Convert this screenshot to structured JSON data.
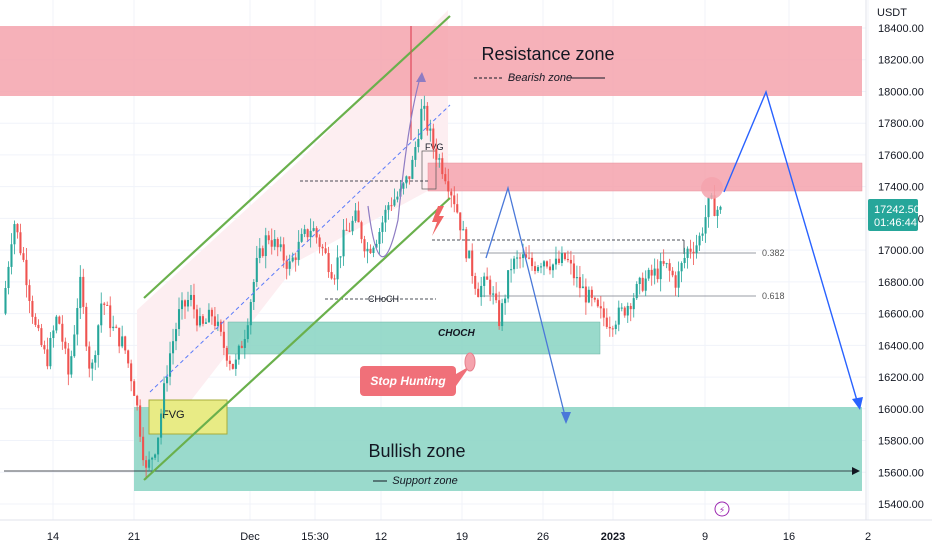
{
  "chart_data": {
    "type": "candlestick",
    "title": "",
    "ylabel": "USDT",
    "xlabel": "",
    "ylim": [
      15300,
      18450
    ],
    "yticks": [
      15400,
      15600,
      15800,
      16000,
      16200,
      16400,
      16600,
      16800,
      17000,
      17200,
      17400,
      17600,
      17800,
      18000,
      18200,
      18400
    ],
    "ytick_labels": [
      "15400.00",
      "15600.00",
      "15800.00",
      "16000.00",
      "16200.00",
      "16400.00",
      "16600.00",
      "16800.00",
      "17000.00",
      "17200.00",
      "17400.00",
      "17600.00",
      "17800.00",
      "18000.00",
      "18200.00",
      "18400.00"
    ],
    "xaxis_labels": [
      "14",
      "21",
      "Dec",
      "15:30",
      "12",
      "19",
      "26",
      "2023",
      "9",
      "16",
      "2"
    ],
    "last_price": "17242.50",
    "countdown": "01:46:44",
    "grid": true,
    "ohlc_trend": [
      [
        0,
        16600
      ],
      [
        2,
        17200
      ],
      [
        4,
        16900
      ],
      [
        6,
        16500
      ],
      [
        8,
        16300
      ],
      [
        10,
        16600
      ],
      [
        12,
        16200
      ],
      [
        14,
        16800
      ],
      [
        16,
        16200
      ],
      [
        18,
        16700
      ],
      [
        20,
        16500
      ],
      [
        22,
        16400
      ],
      [
        24,
        16100
      ],
      [
        26,
        15600
      ],
      [
        28,
        15800
      ],
      [
        30,
        16300
      ],
      [
        32,
        16600
      ],
      [
        34,
        16700
      ],
      [
        36,
        16500
      ],
      [
        38,
        16600
      ],
      [
        40,
        16400
      ],
      [
        42,
        16250
      ],
      [
        44,
        16500
      ],
      [
        46,
        16900
      ],
      [
        48,
        17100
      ],
      [
        50,
        17000
      ],
      [
        52,
        16900
      ],
      [
        54,
        17050
      ],
      [
        56,
        17150
      ],
      [
        58,
        17000
      ],
      [
        60,
        16850
      ],
      [
        62,
        17100
      ],
      [
        64,
        17200
      ],
      [
        66,
        17000
      ],
      [
        68,
        17100
      ],
      [
        70,
        17300
      ],
      [
        72,
        17350
      ],
      [
        74,
        17500
      ],
      [
        76,
        17900
      ],
      [
        78,
        17650
      ],
      [
        80,
        17500
      ],
      [
        82,
        17300
      ],
      [
        84,
        17000
      ],
      [
        86,
        16750
      ],
      [
        88,
        16800
      ],
      [
        90,
        16550
      ],
      [
        92,
        16900
      ],
      [
        94,
        16950
      ],
      [
        96,
        16900
      ],
      [
        98,
        16950
      ],
      [
        100,
        16900
      ],
      [
        102,
        16950
      ],
      [
        104,
        16800
      ],
      [
        106,
        16700
      ],
      [
        108,
        16600
      ],
      [
        110,
        16550
      ],
      [
        112,
        16600
      ],
      [
        114,
        16700
      ],
      [
        116,
        16800
      ],
      [
        118,
        16850
      ],
      [
        120,
        16900
      ],
      [
        122,
        16800
      ],
      [
        124,
        17000
      ],
      [
        126,
        17050
      ],
      [
        128,
        17300
      ],
      [
        130,
        17242
      ]
    ],
    "zones": [
      {
        "name": "Resistance zone",
        "sublabel": "Bearish zone",
        "from": 18000,
        "to": 18380,
        "color": "#f5a3ad"
      },
      {
        "name": "Bullish zone",
        "sublabel": "Support zone",
        "from": 15480,
        "to": 16000,
        "color": "#8fd6c6"
      },
      {
        "name": "",
        "from": 17370,
        "to": 17540,
        "color": "#f5a3ad"
      },
      {
        "name": "",
        "from": 16350,
        "to": 16550,
        "color": "#8fd6c6"
      }
    ],
    "levels": [
      {
        "label": "0.382",
        "value": 16960
      },
      {
        "label": "0.618",
        "value": 16750
      }
    ],
    "annotations": [
      "FVG",
      "FVG",
      "CHoCH",
      "CHOCH",
      "Stop Hunting"
    ],
    "projection": [
      [
        0,
        17350
      ],
      [
        1,
        17950
      ],
      [
        2,
        16000
      ]
    ]
  },
  "labels": {
    "resistance": "Resistance zone",
    "bearish": "Bearish zone",
    "bullish": "Bullish zone",
    "support": "Support zone",
    "fvg_left": "FVG",
    "fvg_small": "FVG",
    "choch_thin": "CHoCH",
    "choch_bold": "CHOCH",
    "stop_hunting": "Stop Hunting",
    "fib_382": "0.382",
    "fib_618": "0.618"
  },
  "colors": {
    "up": "#26a69a",
    "down": "#ef5350",
    "resistance": "#f5a3ad",
    "support": "#8fd6c6",
    "channel": "#7cb342",
    "projection": "#2962ff",
    "price_badge": "#26a69a"
  }
}
